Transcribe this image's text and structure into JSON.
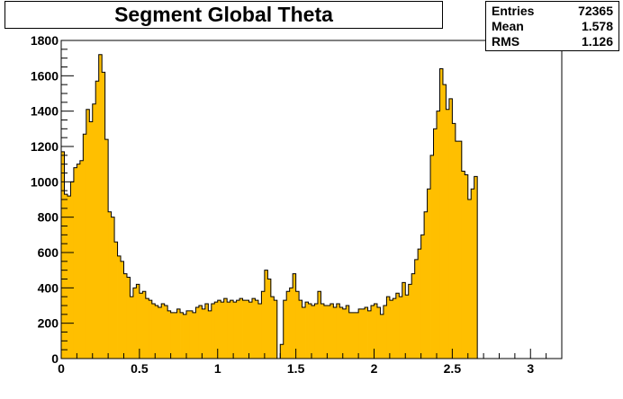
{
  "chart_data": {
    "type": "bar",
    "title": "Segment Global Theta",
    "xlabel": "",
    "ylabel": "",
    "xlim": [
      0,
      3.2
    ],
    "ylim": [
      0,
      1800
    ],
    "bin_width": 0.02,
    "x_ticks": [
      "0",
      "0.5",
      "1",
      "1.5",
      "2",
      "2.5",
      "3"
    ],
    "y_ticks": [
      "0",
      "200",
      "400",
      "600",
      "800",
      "1000",
      "1200",
      "1400",
      "1600",
      "1800"
    ],
    "fill_color": "#ffbf00",
    "values": [
      1170,
      930,
      920,
      1000,
      1080,
      1100,
      1120,
      1270,
      1410,
      1340,
      1440,
      1570,
      1720,
      1620,
      1240,
      830,
      800,
      660,
      580,
      550,
      480,
      460,
      350,
      400,
      420,
      370,
      380,
      340,
      330,
      310,
      300,
      290,
      310,
      300,
      270,
      260,
      260,
      280,
      260,
      250,
      270,
      270,
      260,
      290,
      300,
      280,
      310,
      270,
      310,
      320,
      330,
      320,
      340,
      320,
      330,
      320,
      330,
      340,
      330,
      330,
      320,
      340,
      330,
      310,
      380,
      500,
      450,
      350,
      330,
      0,
      80,
      330,
      380,
      400,
      480,
      380,
      330,
      290,
      320,
      310,
      300,
      310,
      380,
      310,
      300,
      300,
      310,
      290,
      310,
      290,
      280,
      300,
      260,
      260,
      260,
      280,
      280,
      290,
      270,
      300,
      310,
      290,
      250,
      300,
      350,
      330,
      340,
      370,
      350,
      430,
      360,
      420,
      480,
      560,
      620,
      700,
      830,
      960,
      1150,
      1300,
      1400,
      1640,
      1550,
      1410,
      1470,
      1330,
      1230,
      1230,
      1060,
      1040,
      900,
      960,
      1030
    ]
  },
  "stats": {
    "entries_label": "Entries",
    "entries_value": "72365",
    "mean_label": "Mean",
    "mean_value": "1.578",
    "rms_label": "RMS",
    "rms_value": "1.126"
  }
}
